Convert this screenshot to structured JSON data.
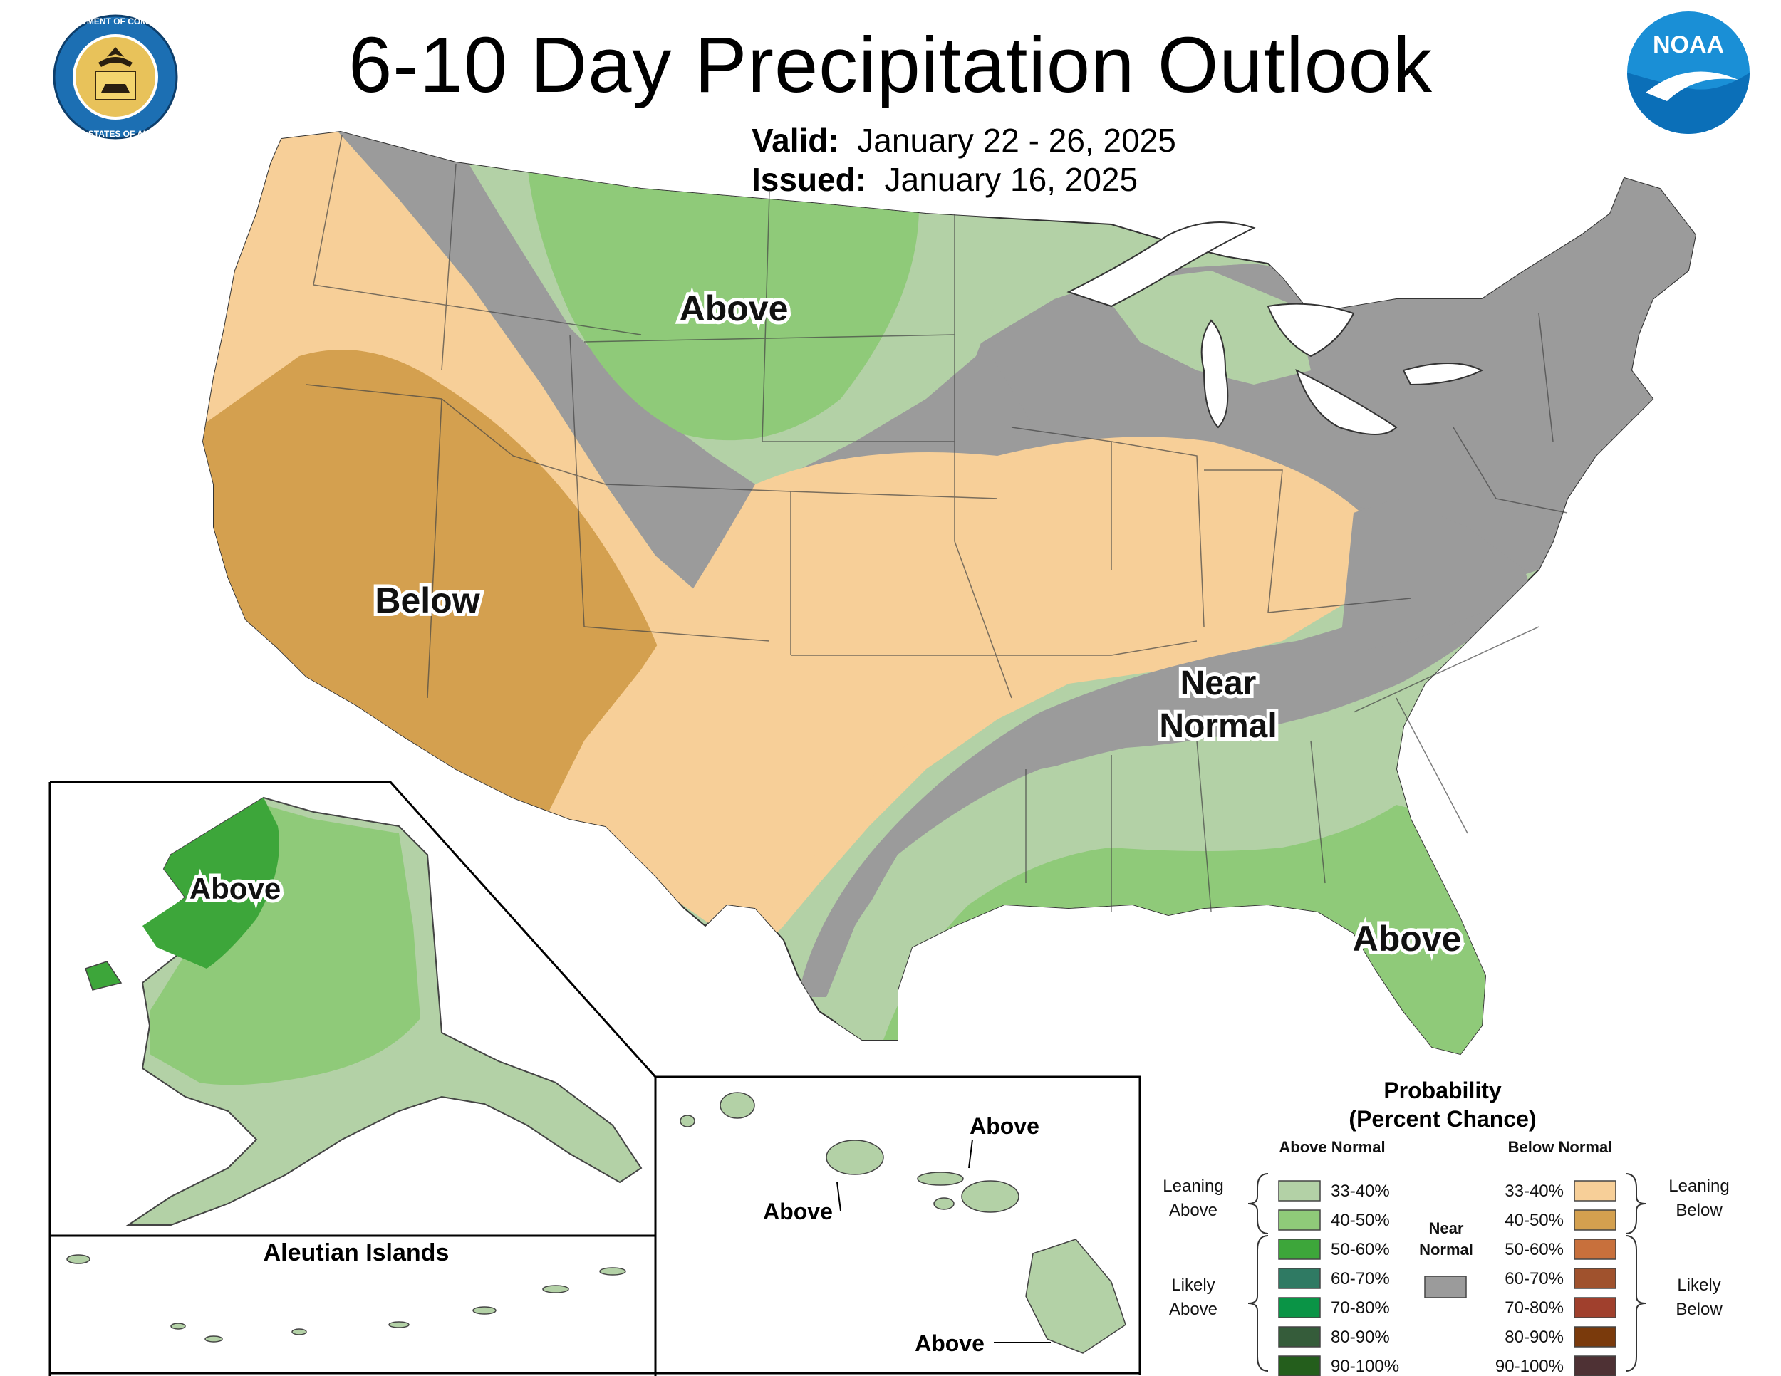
{
  "title": "6-10 Day Precipitation Outlook",
  "valid": {
    "label": "Valid:",
    "value": "January 22 - 26, 2025"
  },
  "issued": {
    "label": "Issued:",
    "value": "January 16, 2025"
  },
  "logos": {
    "commerce": {
      "outer_text": "DEPARTMENT OF COMMERCE",
      "outer_text_bottom": "UNITED STATES OF AMERICA"
    },
    "noaa": {
      "text": "NOAA"
    }
  },
  "map_labels": {
    "above_north": "Above",
    "below_west": "Below",
    "near_normal_line1": "Near",
    "near_normal_line2": "Normal",
    "above_southeast": "Above",
    "alaska_above": "Above",
    "aleutian_title": "Aleutian Islands",
    "hawaii_above_1": "Above",
    "hawaii_above_2": "Above",
    "hawaii_above_3": "Above"
  },
  "legend": {
    "title_line1": "Probability",
    "title_line2": "(Percent Chance)",
    "above_header": "Above Normal",
    "below_header": "Below Normal",
    "near_header_line1": "Near",
    "near_header_line2": "Normal",
    "leaning_above": [
      "Leaning",
      "Above"
    ],
    "likely_above": [
      "Likely",
      "Above"
    ],
    "leaning_below": [
      "Leaning",
      "Below"
    ],
    "likely_below": [
      "Likely",
      "Below"
    ],
    "above_items": [
      {
        "label": "33-40%",
        "color": "#b3d1a6"
      },
      {
        "label": "40-50%",
        "color": "#8fca79"
      },
      {
        "label": "50-60%",
        "color": "#3da63a"
      },
      {
        "label": "60-70%",
        "color": "#2f7a63"
      },
      {
        "label": "70-80%",
        "color": "#0a9446"
      },
      {
        "label": "80-90%",
        "color": "#355c3a"
      },
      {
        "label": "90-100%",
        "color": "#245e1c"
      }
    ],
    "below_items": [
      {
        "label": "33-40%",
        "color": "#f7cf98"
      },
      {
        "label": "40-50%",
        "color": "#d4a04f"
      },
      {
        "label": "50-60%",
        "color": "#c8703c"
      },
      {
        "label": "60-70%",
        "color": "#a0522d"
      },
      {
        "label": "70-80%",
        "color": "#a0402d"
      },
      {
        "label": "80-90%",
        "color": "#7a3a0c"
      },
      {
        "label": "90-100%",
        "color": "#4e3134"
      }
    ],
    "near_color": "#9b9b9b"
  },
  "colors": {
    "near_normal": "#9b9b9b",
    "leaning_above": "#b3d1a6",
    "above_40_50": "#8fca79",
    "above_50_60": "#3da63a",
    "leaning_below": "#f7cf98",
    "below_40_50": "#d4a04f",
    "lakes": "#ffffff"
  }
}
